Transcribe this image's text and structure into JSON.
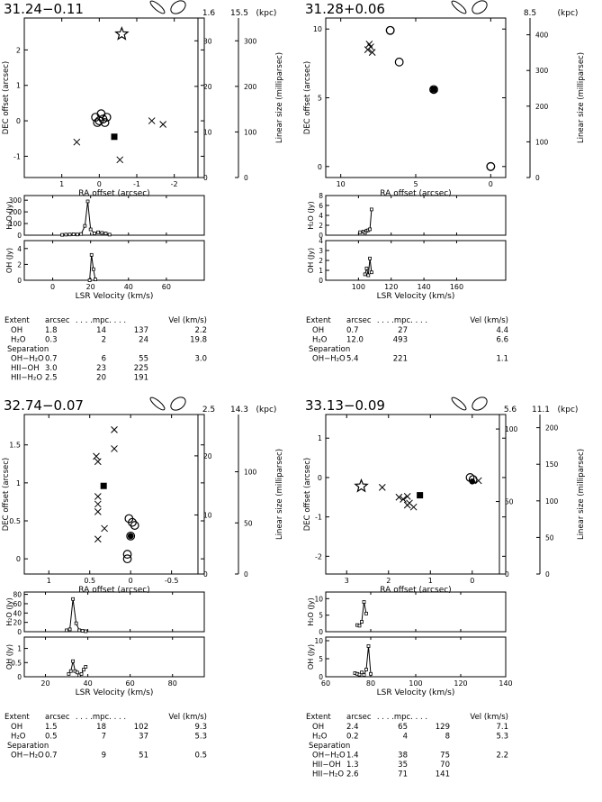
{
  "panels": [
    {
      "source": "31.24−0.11",
      "distances": [
        "1.6",
        "15.5"
      ],
      "unit": "(kpc)",
      "chart_data": {
        "type": "scatter",
        "xlabel": "RA offset (arcsec)",
        "ylabel": "DEC offset (arcsec)",
        "xlim": [
          2.0,
          -2.8
        ],
        "ylim": [
          -1.6,
          2.9
        ],
        "xticks": [
          1,
          0,
          -1,
          -2
        ],
        "yticks": [
          -1,
          0,
          1,
          2
        ],
        "yright_label": "Linear size (milliparsec)",
        "size_axes": [
          {
            "max": 35,
            "ticks": [
              0,
              10,
              20,
              30
            ]
          },
          {
            "max": 350,
            "ticks": [
              0,
              100,
              200,
              300
            ]
          }
        ],
        "points": [
          {
            "m": "star",
            "x": -0.6,
            "y": 2.45
          },
          {
            "m": "circle",
            "x": 0.0,
            "y": 0.0
          },
          {
            "m": "circle",
            "x": -0.1,
            "y": 0.05
          },
          {
            "m": "circle",
            "x": -0.2,
            "y": 0.1
          },
          {
            "m": "circle",
            "x": -0.05,
            "y": 0.2
          },
          {
            "m": "circle",
            "x": 0.1,
            "y": 0.1
          },
          {
            "m": "circle",
            "x": 0.05,
            "y": -0.05
          },
          {
            "m": "circle",
            "x": -0.15,
            "y": -0.05
          },
          {
            "m": "square",
            "x": -0.4,
            "y": -0.45
          },
          {
            "m": "cross",
            "x": 0.6,
            "y": -0.6
          },
          {
            "m": "cross",
            "x": -0.55,
            "y": -1.1
          },
          {
            "m": "cross",
            "x": -1.4,
            "y": 0.0
          },
          {
            "m": "cross",
            "x": -1.7,
            "y": -0.1
          }
        ],
        "spectra": {
          "xlabel": "LSR Velocity (km/s)",
          "xlim": [
            -15,
            80
          ],
          "xticks": [
            0,
            20,
            40,
            60
          ],
          "h2o": {
            "label": "H2O (Jy)",
            "ylim": [
              0,
              340
            ],
            "yticks": [
              0,
              100,
              200,
              300
            ],
            "x": [
              5,
              7,
              9,
              11,
              13,
              15,
              17,
              18.5,
              20,
              22,
              24,
              26,
              28,
              30
            ],
            "y": [
              3,
              5,
              6,
              8,
              6,
              10,
              80,
              290,
              50,
              15,
              25,
              20,
              15,
              5
            ]
          },
          "oh": {
            "label": "OH (Jy)",
            "ylim": [
              0,
              5
            ],
            "yticks": [
              0,
              2,
              4
            ],
            "x": [
              19.5,
              20.5,
              21.5,
              22.5
            ],
            "y": [
              0,
              3.2,
              1.4,
              0.1
            ]
          }
        }
      },
      "table": {
        "header": [
          "Extent",
          "arcsec",
          ". . . .mpc. . . .",
          "Vel (km/s)"
        ],
        "rows": [
          [
            "OH",
            "1.8",
            "14",
            "137",
            "2.2"
          ],
          [
            "H₂O",
            "0.3",
            "2",
            "24",
            "19.8"
          ],
          [
            "Separation",
            "",
            "",
            "",
            ""
          ],
          [
            "OH−H₂O",
            "0.7",
            "6",
            "55",
            "3.0"
          ],
          [
            "HII−OH",
            "3.0",
            "23",
            "225",
            ""
          ],
          [
            "HII−H₂O",
            "2.5",
            "20",
            "191",
            ""
          ]
        ]
      }
    },
    {
      "source": "31.28+0.06",
      "distances": [
        "8.5"
      ],
      "unit": "(kpc)",
      "chart_data": {
        "type": "scatter",
        "xlabel": "RA offset (arcsec)",
        "ylabel": "DEC offset (arcsec)",
        "xlim": [
          11.0,
          -1.0
        ],
        "ylim": [
          -0.8,
          10.8
        ],
        "xticks": [
          10,
          5,
          0
        ],
        "yticks": [
          0,
          5,
          10
        ],
        "yright_label": "Linear size (milliparsec)",
        "size_axes": [
          {
            "max": 447,
            "ticks": [
              0,
              100,
              200,
              300,
              400
            ]
          }
        ],
        "points": [
          {
            "m": "cross",
            "x": 8.2,
            "y": 8.5
          },
          {
            "m": "cross",
            "x": 8.0,
            "y": 8.7
          },
          {
            "m": "cross",
            "x": 7.9,
            "y": 8.3
          },
          {
            "m": "cross",
            "x": 8.1,
            "y": 8.9
          },
          {
            "m": "circle",
            "x": 6.7,
            "y": 9.9
          },
          {
            "m": "circle",
            "x": 6.7,
            "y": 9.9
          },
          {
            "m": "circle",
            "x": 6.1,
            "y": 7.6
          },
          {
            "m": "circle",
            "x": 3.8,
            "y": 5.6
          },
          {
            "m": "square",
            "x": 3.8,
            "y": 5.6
          },
          {
            "m": "circle",
            "x": 0.0,
            "y": 0.0
          },
          {
            "m": "circle",
            "x": 0.0,
            "y": 0.0
          }
        ],
        "spectra": {
          "xlabel": "LSR Velocity (km/s)",
          "xlim": [
            80,
            190
          ],
          "xticks": [
            100,
            120,
            140,
            160
          ],
          "h2o": {
            "label": "H2O (Jy)",
            "ylim": [
              0,
              8
            ],
            "yticks": [
              0,
              2,
              4,
              6,
              8
            ],
            "x": [
              101,
              103,
              104,
              105,
              106,
              107,
              108
            ],
            "y": [
              0.6,
              0.7,
              0.5,
              0.9,
              1.0,
              1.2,
              5.2
            ]
          },
          "oh": {
            "label": "OH (Jy)",
            "ylim": [
              0,
              4
            ],
            "yticks": [
              0,
              1,
              2,
              3,
              4
            ],
            "x": [
              104,
              105,
              106,
              107,
              108
            ],
            "y": [
              0.6,
              1.2,
              0.5,
              2.2,
              0.8
            ]
          }
        }
      },
      "table": {
        "header": [
          "Extent",
          "arcsec",
          ". . . .mpc. . . .",
          "Vel (km/s)"
        ],
        "rows": [
          [
            "OH",
            "0.7",
            "27",
            "",
            "4.4"
          ],
          [
            "H₂O",
            "12.0",
            "493",
            "",
            "6.6"
          ],
          [
            "Separation",
            "",
            "",
            "",
            ""
          ],
          [
            "OH−H₂O",
            "5.4",
            "221",
            "",
            "1.1"
          ]
        ]
      }
    },
    {
      "source": "32.74−0.07",
      "distances": [
        "2.5",
        "14.3"
      ],
      "unit": "(kpc)",
      "chart_data": {
        "type": "scatter",
        "xlabel": "RA offset (arcsec)",
        "ylabel": "DEC offset (arcsec)",
        "xlim": [
          1.3,
          -0.9
        ],
        "ylim": [
          -0.2,
          1.9
        ],
        "xticks": [
          1,
          0.5,
          0,
          -0.5
        ],
        "yticks": [
          0,
          0.5,
          1,
          1.5
        ],
        "yright_label": "Linear size (milliparsec)",
        "size_axes": [
          {
            "max": 27,
            "ticks": [
              0,
              10,
              20
            ]
          },
          {
            "max": 156,
            "ticks": [
              0,
              50,
              100
            ]
          }
        ],
        "points": [
          {
            "m": "cross",
            "x": 0.2,
            "y": 1.7
          },
          {
            "m": "cross",
            "x": 0.2,
            "y": 1.45
          },
          {
            "m": "cross",
            "x": 0.42,
            "y": 1.35
          },
          {
            "m": "cross",
            "x": 0.4,
            "y": 1.28
          },
          {
            "m": "cross",
            "x": 0.4,
            "y": 0.82
          },
          {
            "m": "cross",
            "x": 0.4,
            "y": 0.72
          },
          {
            "m": "cross",
            "x": 0.4,
            "y": 0.62
          },
          {
            "m": "cross",
            "x": 0.32,
            "y": 0.4
          },
          {
            "m": "cross",
            "x": 0.4,
            "y": 0.26
          },
          {
            "m": "square",
            "x": 0.33,
            "y": 0.96
          },
          {
            "m": "circle",
            "x": 0.02,
            "y": 0.53
          },
          {
            "m": "circle",
            "x": -0.02,
            "y": 0.48
          },
          {
            "m": "circle",
            "x": -0.05,
            "y": 0.44
          },
          {
            "m": "circle",
            "x": 0.0,
            "y": 0.3
          },
          {
            "m": "filled",
            "x": 0.0,
            "y": 0.3
          },
          {
            "m": "circle",
            "x": 0.04,
            "y": 0.06
          },
          {
            "m": "circle",
            "x": 0.04,
            "y": 0.0
          }
        ],
        "spectra": {
          "xlabel": "LSR Velocity (km/s)",
          "xlim": [
            10,
            95
          ],
          "xticks": [
            20,
            40,
            60,
            80
          ],
          "h2o": {
            "label": "H2O (Jy)",
            "ylim": [
              0,
              85
            ],
            "yticks": [
              0,
              20,
              40,
              60,
              80
            ],
            "x": [
              30,
              31.5,
              33,
              34.5,
              36,
              37.5,
              39
            ],
            "y": [
              3,
              5,
              70,
              18,
              3,
              2,
              1
            ]
          },
          "oh": {
            "label": "OH (Jy)",
            "ylim": [
              0,
              1.4
            ],
            "yticks": [
              0,
              0.5,
              1
            ],
            "x": [
              31,
              32,
              33,
              34,
              35,
              36,
              37,
              38,
              39
            ],
            "y": [
              0.1,
              0.2,
              0.55,
              0.2,
              0.15,
              0.05,
              0.1,
              0.25,
              0.35
            ]
          }
        }
      },
      "table": {
        "header": [
          "Extent",
          "arcsec",
          ". . . .mpc. . . .",
          "Vel (km/s)"
        ],
        "rows": [
          [
            "OH",
            "1.5",
            "18",
            "102",
            "9.3"
          ],
          [
            "H₂O",
            "0.5",
            "7",
            "37",
            "5.3"
          ],
          [
            "Separation",
            "",
            "",
            "",
            ""
          ],
          [
            "OH−H₂O",
            "0.7",
            "9",
            "51",
            "0.5"
          ]
        ]
      }
    },
    {
      "source": "33.13−0.09",
      "distances": [
        "5.6",
        "11.1"
      ],
      "unit": "(kpc)",
      "chart_data": {
        "type": "scatter",
        "xlabel": "RA offset (arcsec)",
        "ylabel": "DEC offset (arcsec)",
        "xlim": [
          3.5,
          -0.8
        ],
        "ylim": [
          -2.45,
          1.6
        ],
        "xticks": [
          3,
          2,
          1,
          0
        ],
        "yticks": [
          -2,
          -1,
          0,
          1
        ],
        "yright_label": "Linear size (milliparsec)",
        "size_axes": [
          {
            "max": 110,
            "ticks": [
              0,
              50,
              100
            ]
          },
          {
            "max": 218,
            "ticks": [
              0,
              50,
              100,
              150,
              200
            ]
          }
        ],
        "points": [
          {
            "m": "star",
            "x": 2.65,
            "y": -0.22
          },
          {
            "m": "cross",
            "x": 2.15,
            "y": -0.25
          },
          {
            "m": "cross",
            "x": 1.75,
            "y": -0.5
          },
          {
            "m": "cross",
            "x": 1.65,
            "y": -0.55
          },
          {
            "m": "cross",
            "x": 1.55,
            "y": -0.48
          },
          {
            "m": "cross",
            "x": 1.5,
            "y": -0.65
          },
          {
            "m": "cross",
            "x": 1.4,
            "y": -0.75
          },
          {
            "m": "cross",
            "x": 1.55,
            "y": -0.7
          },
          {
            "m": "square",
            "x": 1.25,
            "y": -0.45
          },
          {
            "m": "circle",
            "x": 0.05,
            "y": 0.0
          },
          {
            "m": "circle",
            "x": -0.02,
            "y": -0.05
          },
          {
            "m": "filled",
            "x": 0.0,
            "y": -0.1
          },
          {
            "m": "cross",
            "x": -0.15,
            "y": -0.08
          }
        ],
        "spectra": {
          "xlabel": "LSR Velocity (km/s)",
          "xlim": [
            60,
            140
          ],
          "xticks": [
            60,
            80,
            100,
            120,
            140
          ],
          "h2o": {
            "label": "H2O (Jy)",
            "ylim": [
              0,
              12
            ],
            "yticks": [
              0,
              5,
              10
            ],
            "x": [
              74,
              75,
              76,
              77,
              78
            ],
            "y": [
              2.0,
              1.8,
              3.0,
              9.0,
              5.5
            ]
          },
          "oh": {
            "label": "OH (Jy)",
            "ylim": [
              0,
              11
            ],
            "yticks": [
              0,
              5,
              10
            ],
            "x": [
              73,
              74,
              75,
              76,
              77,
              78,
              79,
              80
            ],
            "y": [
              1.0,
              0.8,
              0.6,
              1.2,
              0.5,
              2.0,
              8.5,
              0.8
            ]
          }
        }
      },
      "table": {
        "header": [
          "Extent",
          "arcsec",
          ". . . .mpc. . . .",
          "Vel (km/s)"
        ],
        "rows": [
          [
            "OH",
            "2.4",
            "65",
            "129",
            "7.1"
          ],
          [
            "H₂O",
            "0.2",
            "4",
            "8",
            "5.3"
          ],
          [
            "Separation",
            "",
            "",
            "",
            ""
          ],
          [
            "OH−H₂O",
            "1.4",
            "38",
            "75",
            "2.2"
          ],
          [
            "HII−OH",
            "1.3",
            "35",
            "70",
            ""
          ],
          [
            "HII−H₂O",
            "2.6",
            "71",
            "141",
            ""
          ]
        ]
      }
    }
  ]
}
